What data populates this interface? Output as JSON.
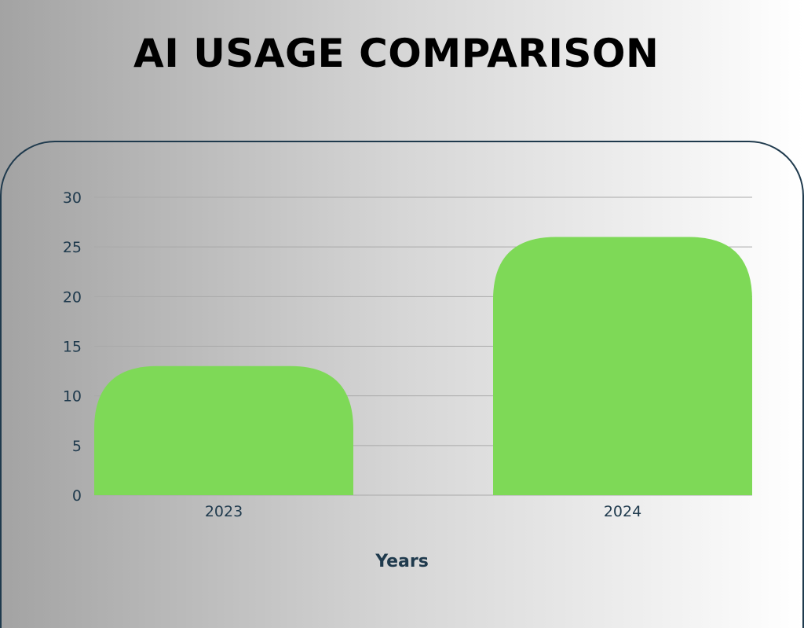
{
  "title": "AI USAGE COMPARISON",
  "colors": {
    "bar": "#7ed957",
    "frame": "#1f3a4d",
    "text": "#1f3a4d",
    "grid": "#a9a9a9"
  },
  "chart_data": {
    "type": "bar",
    "categories": [
      "2023",
      "2024"
    ],
    "values": [
      13,
      26
    ],
    "title": "",
    "xlabel": "Years",
    "ylabel": "",
    "ylim": [
      0,
      30
    ],
    "yticks": [
      0,
      5,
      10,
      15,
      20,
      25,
      30
    ],
    "grid": true,
    "legend": "none"
  }
}
